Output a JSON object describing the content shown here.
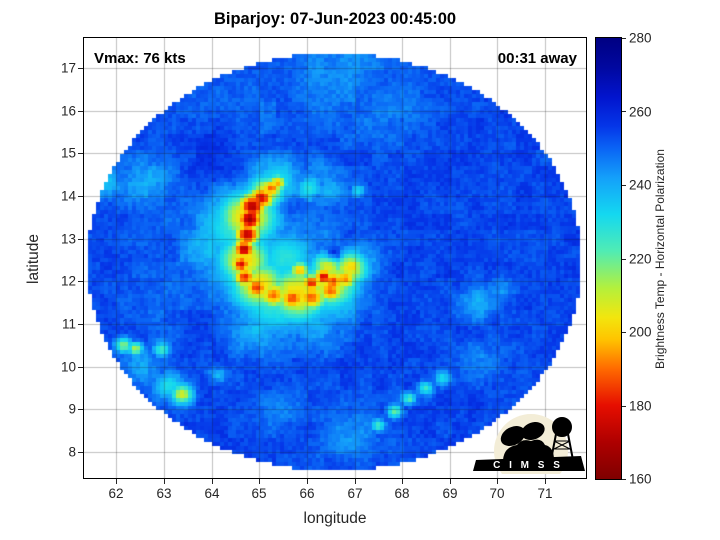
{
  "annotations": {
    "vmax": "Vmax: 76 kts",
    "time_away": "00:31 away"
  },
  "logo": {
    "text": "C I M S S"
  },
  "colors": {
    "background": "#ffffff",
    "grid_rgba": "rgba(30,30,30,0.28)",
    "axis_text": "#262626",
    "title_text": "#000000",
    "logo_circle": "#f3edd7",
    "logo_silhouette": "#000000"
  },
  "chart_data": {
    "type": "heatmap",
    "title": "Biparjoy: 07-Jun-2023 00:45:00",
    "xlabel": "longitude",
    "ylabel": "latitude",
    "xlim": [
      61.32,
      71.86
    ],
    "ylim": [
      7.39,
      17.7
    ],
    "xticks": [
      62,
      63,
      64,
      65,
      66,
      67,
      68,
      69,
      70,
      71
    ],
    "yticks": [
      8,
      9,
      10,
      11,
      12,
      13,
      14,
      15,
      16,
      17
    ],
    "grid": true,
    "colorbar": {
      "label": "Brightness Temp - Horizontal Polarization",
      "min": 160,
      "max": 280,
      "ticks": [
        160,
        180,
        200,
        220,
        240,
        260,
        280
      ],
      "stops": [
        [
          160,
          "#7f0000"
        ],
        [
          170,
          "#ae0000"
        ],
        [
          180,
          "#e60e00"
        ],
        [
          190,
          "#ff6a00"
        ],
        [
          198,
          "#ffc400"
        ],
        [
          204,
          "#f2e60e"
        ],
        [
          212,
          "#b4f03c"
        ],
        [
          222,
          "#50ecb4"
        ],
        [
          232,
          "#14d8f0"
        ],
        [
          242,
          "#14a0fa"
        ],
        [
          250,
          "#0a64f5"
        ],
        [
          256,
          "#0536e8"
        ],
        [
          264,
          "#0214cd"
        ],
        [
          272,
          "#0108a0"
        ],
        [
          280,
          "#000082"
        ]
      ]
    },
    "swath_disk": {
      "center_lon": 66.58,
      "center_lat": 12.45,
      "rx_deg": 5.19,
      "ry_deg": 4.9
    },
    "base_temp": 254,
    "feature_schema": [
      "lon",
      "lat",
      "sigma_deg",
      "temp_K"
    ],
    "features": [
      [
        65.38,
        14.3,
        0.14,
        196
      ],
      [
        65.25,
        14.18,
        0.16,
        188
      ],
      [
        65.05,
        13.95,
        0.2,
        178
      ],
      [
        64.85,
        13.75,
        0.22,
        170
      ],
      [
        64.8,
        13.45,
        0.2,
        168
      ],
      [
        64.75,
        13.1,
        0.2,
        172
      ],
      [
        64.68,
        12.75,
        0.17,
        170
      ],
      [
        64.62,
        12.4,
        0.16,
        178
      ],
      [
        64.7,
        12.1,
        0.18,
        182
      ],
      [
        64.95,
        11.85,
        0.2,
        184
      ],
      [
        65.3,
        11.68,
        0.22,
        190
      ],
      [
        65.7,
        11.6,
        0.22,
        186
      ],
      [
        66.1,
        11.62,
        0.22,
        188
      ],
      [
        66.5,
        11.78,
        0.2,
        188
      ],
      [
        66.8,
        12.05,
        0.18,
        192
      ],
      [
        66.95,
        12.35,
        0.16,
        198
      ],
      [
        66.35,
        12.1,
        0.15,
        176
      ],
      [
        66.1,
        11.95,
        0.16,
        182
      ],
      [
        65.85,
        12.25,
        0.15,
        196
      ],
      [
        66.55,
        12.0,
        0.18,
        186
      ],
      [
        64.75,
        13.5,
        0.42,
        199
      ],
      [
        64.7,
        12.5,
        0.38,
        200
      ],
      [
        65.0,
        11.9,
        0.4,
        200
      ],
      [
        65.8,
        11.7,
        0.45,
        200
      ],
      [
        66.5,
        11.95,
        0.4,
        202
      ],
      [
        66.9,
        12.3,
        0.28,
        204
      ],
      [
        65.15,
        14.1,
        0.26,
        203
      ],
      [
        66.45,
        12.35,
        0.25,
        205
      ],
      [
        64.6,
        13.3,
        0.6,
        224
      ],
      [
        64.7,
        12.3,
        0.55,
        226
      ],
      [
        65.3,
        11.55,
        0.6,
        226
      ],
      [
        66.4,
        11.8,
        0.55,
        227
      ],
      [
        67.0,
        12.4,
        0.35,
        232
      ],
      [
        65.35,
        14.35,
        0.38,
        230
      ],
      [
        65.55,
        12.55,
        0.45,
        228
      ],
      [
        64.0,
        12.8,
        0.5,
        238
      ],
      [
        65.0,
        10.9,
        0.45,
        238
      ],
      [
        66.2,
        10.95,
        0.4,
        240
      ],
      [
        66.55,
        12.62,
        0.13,
        277
      ],
      [
        66.15,
        13.25,
        0.45,
        246
      ],
      [
        66.05,
        14.18,
        0.2,
        228
      ],
      [
        66.45,
        14.1,
        0.28,
        240
      ],
      [
        67.08,
        14.12,
        0.1,
        231
      ],
      [
        66.3,
        14.5,
        0.35,
        246
      ],
      [
        62.15,
        10.5,
        0.13,
        216
      ],
      [
        62.4,
        10.42,
        0.11,
        212
      ],
      [
        62.95,
        10.4,
        0.13,
        224
      ],
      [
        63.38,
        9.35,
        0.16,
        207
      ],
      [
        63.1,
        9.55,
        0.22,
        230
      ],
      [
        64.15,
        9.8,
        0.13,
        236
      ],
      [
        62.6,
        10.0,
        0.3,
        242
      ],
      [
        67.5,
        8.62,
        0.11,
        224
      ],
      [
        67.85,
        8.95,
        0.11,
        220
      ],
      [
        68.15,
        9.25,
        0.1,
        222
      ],
      [
        68.5,
        9.5,
        0.11,
        224
      ],
      [
        68.85,
        9.72,
        0.13,
        230
      ],
      [
        69.6,
        10.1,
        0.35,
        245
      ],
      [
        69.65,
        11.5,
        0.3,
        240
      ],
      [
        70.05,
        11.8,
        0.22,
        243
      ],
      [
        66.6,
        16.9,
        0.9,
        245
      ],
      [
        67.6,
        16.1,
        0.7,
        247
      ],
      [
        64.6,
        16.1,
        0.8,
        249
      ],
      [
        62.6,
        14.35,
        0.45,
        241
      ],
      [
        61.75,
        14.3,
        0.25,
        236
      ],
      [
        63.2,
        13.4,
        0.7,
        249
      ],
      [
        62.9,
        11.6,
        0.6,
        249
      ],
      [
        66.9,
        8.4,
        0.45,
        243
      ],
      [
        65.4,
        8.95,
        0.4,
        247
      ],
      [
        64.2,
        15.6,
        0.25,
        258
      ],
      [
        64.05,
        15.0,
        0.3,
        258
      ],
      [
        63.9,
        14.4,
        0.3,
        257
      ]
    ]
  }
}
